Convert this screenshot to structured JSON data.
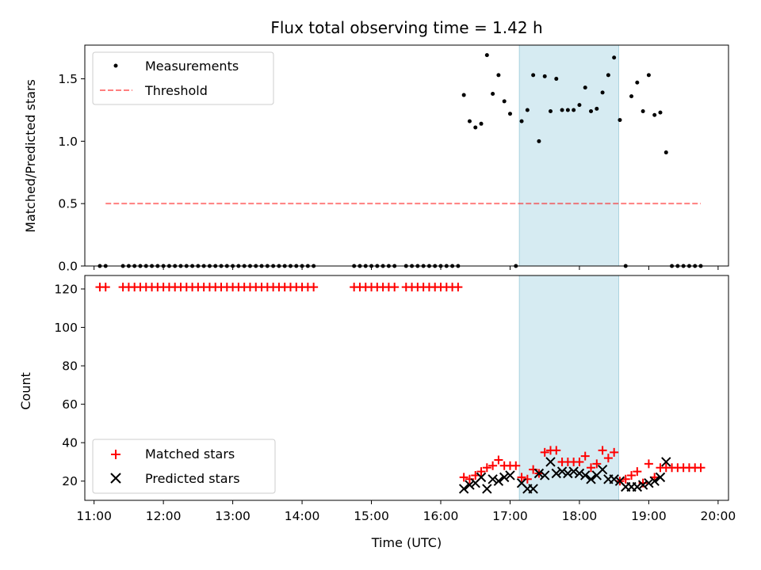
{
  "chart_data": [
    {
      "type": "scatter",
      "title": "Flux total observing time = 1.42 h",
      "ylabel": "Matched/Predicted stars",
      "xlabel": "",
      "xlim": [
        "10:52",
        "20:09"
      ],
      "ylim": [
        0,
        1.77
      ],
      "yticks": [
        0.0,
        0.5,
        1.0,
        1.5
      ],
      "yticklabels": [
        "0.0",
        "0.5",
        "1.0",
        "1.5"
      ],
      "grid": false,
      "legend": "top-left",
      "highlight_span": {
        "x0": "17:08",
        "x1": "18:34",
        "color": "#add8e6"
      },
      "series": [
        {
          "name": "Measurements",
          "kind": "points",
          "color": "#000000",
          "x": [
            "11:05",
            "11:10",
            "11:25",
            "11:30",
            "11:35",
            "11:40",
            "11:45",
            "11:50",
            "11:55",
            "12:00",
            "12:05",
            "12:10",
            "12:15",
            "12:20",
            "12:25",
            "12:30",
            "12:35",
            "12:40",
            "12:45",
            "12:50",
            "12:55",
            "13:00",
            "13:05",
            "13:10",
            "13:15",
            "13:20",
            "13:25",
            "13:30",
            "13:35",
            "13:40",
            "13:45",
            "13:50",
            "13:55",
            "14:00",
            "14:05",
            "14:10",
            "14:45",
            "14:50",
            "14:55",
            "15:00",
            "15:05",
            "15:10",
            "15:15",
            "15:20",
            "15:30",
            "15:35",
            "15:40",
            "15:45",
            "15:50",
            "15:55",
            "16:00",
            "16:05",
            "16:10",
            "16:15",
            "16:20",
            "16:25",
            "16:30",
            "16:35",
            "16:40",
            "16:45",
            "16:50",
            "16:55",
            "17:00",
            "17:05",
            "17:10",
            "17:15",
            "17:20",
            "17:25",
            "17:30",
            "17:35",
            "17:40",
            "17:45",
            "17:50",
            "17:55",
            "18:00",
            "18:05",
            "18:10",
            "18:15",
            "18:20",
            "18:25",
            "18:30",
            "18:35",
            "18:40",
            "18:45",
            "18:50",
            "18:55",
            "19:00",
            "19:05",
            "19:10",
            "19:15",
            "19:20",
            "19:25",
            "19:30",
            "19:35",
            "19:40",
            "19:45"
          ],
          "y": [
            0,
            0,
            0,
            0,
            0,
            0,
            0,
            0,
            0,
            0,
            0,
            0,
            0,
            0,
            0,
            0,
            0,
            0,
            0,
            0,
            0,
            0,
            0,
            0,
            0,
            0,
            0,
            0,
            0,
            0,
            0,
            0,
            0,
            0,
            0,
            0,
            0,
            0,
            0,
            0,
            0,
            0,
            0,
            0,
            0,
            0,
            0,
            0,
            0,
            0,
            0,
            0,
            0,
            0,
            1.37,
            1.16,
            1.11,
            1.14,
            1.69,
            1.38,
            1.53,
            1.32,
            1.22,
            0,
            1.16,
            1.25,
            1.53,
            1.0,
            1.52,
            1.24,
            1.5,
            1.25,
            1.25,
            1.25,
            1.29,
            1.43,
            1.24,
            1.26,
            1.39,
            1.53,
            1.67,
            1.17,
            0,
            1.36,
            1.47,
            1.24,
            1.53,
            1.21,
            1.23,
            0.91,
            0,
            0,
            0,
            0,
            0,
            0
          ]
        },
        {
          "name": "Threshold",
          "kind": "dashed-line",
          "color": "#ff0000",
          "x": [
            "11:10",
            "19:45"
          ],
          "y": [
            0.5,
            0.5
          ]
        }
      ]
    },
    {
      "type": "scatter",
      "title": "",
      "ylabel": "Count",
      "xlabel": "Time (UTC)",
      "xlim": [
        "10:52",
        "20:09"
      ],
      "ylim": [
        10,
        127
      ],
      "yticks": [
        20,
        40,
        60,
        80,
        100,
        120
      ],
      "yticklabels": [
        "20",
        "40",
        "60",
        "80",
        "100",
        "120"
      ],
      "xticks": [
        "11:00",
        "12:00",
        "13:00",
        "14:00",
        "15:00",
        "16:00",
        "17:00",
        "18:00",
        "19:00",
        "20:00"
      ],
      "xticklabels": [
        "11:00",
        "12:00",
        "13:00",
        "14:00",
        "15:00",
        "16:00",
        "17:00",
        "18:00",
        "19:00",
        "20:00"
      ],
      "grid": false,
      "legend": "bottom-left",
      "highlight_span": {
        "x0": "17:08",
        "x1": "18:34",
        "color": "#add8e6"
      },
      "series": [
        {
          "name": "Matched stars",
          "kind": "plus-markers",
          "color": "#ff0000",
          "x": [
            "11:05",
            "11:10",
            "11:25",
            "11:30",
            "11:35",
            "11:40",
            "11:45",
            "11:50",
            "11:55",
            "12:00",
            "12:05",
            "12:10",
            "12:15",
            "12:20",
            "12:25",
            "12:30",
            "12:35",
            "12:40",
            "12:45",
            "12:50",
            "12:55",
            "13:00",
            "13:05",
            "13:10",
            "13:15",
            "13:20",
            "13:25",
            "13:30",
            "13:35",
            "13:40",
            "13:45",
            "13:50",
            "13:55",
            "14:00",
            "14:05",
            "14:10",
            "14:45",
            "14:50",
            "14:55",
            "15:00",
            "15:05",
            "15:10",
            "15:15",
            "15:20",
            "15:30",
            "15:35",
            "15:40",
            "15:45",
            "15:50",
            "15:55",
            "16:00",
            "16:05",
            "16:10",
            "16:15",
            "16:20",
            "16:25",
            "16:30",
            "16:35",
            "16:40",
            "16:45",
            "16:50",
            "16:55",
            "17:00",
            "17:05",
            "17:10",
            "17:15",
            "17:20",
            "17:25",
            "17:30",
            "17:35",
            "17:40",
            "17:45",
            "17:50",
            "17:55",
            "18:00",
            "18:05",
            "18:10",
            "18:15",
            "18:20",
            "18:25",
            "18:30",
            "18:35",
            "18:40",
            "18:45",
            "18:50",
            "18:55",
            "19:00",
            "19:05",
            "19:10",
            "19:15",
            "19:20",
            "19:25",
            "19:30",
            "19:35",
            "19:40",
            "19:45"
          ],
          "y": [
            121,
            121,
            121,
            121,
            121,
            121,
            121,
            121,
            121,
            121,
            121,
            121,
            121,
            121,
            121,
            121,
            121,
            121,
            121,
            121,
            121,
            121,
            121,
            121,
            121,
            121,
            121,
            121,
            121,
            121,
            121,
            121,
            121,
            121,
            121,
            121,
            121,
            121,
            121,
            121,
            121,
            121,
            121,
            121,
            121,
            121,
            121,
            121,
            121,
            121,
            121,
            121,
            121,
            121,
            22,
            21,
            23,
            25,
            27,
            28,
            31,
            28,
            28,
            28,
            22,
            21,
            26,
            24,
            35,
            36,
            36,
            30,
            30,
            30,
            30,
            33,
            27,
            29,
            36,
            32,
            35,
            20,
            21,
            23,
            25,
            19,
            29,
            22,
            27,
            27,
            27,
            27,
            27,
            27,
            27,
            27
          ]
        },
        {
          "name": "Predicted stars",
          "kind": "x-markers",
          "color": "#000000",
          "x": [
            "16:20",
            "16:25",
            "16:30",
            "16:35",
            "16:40",
            "16:45",
            "16:50",
            "16:55",
            "17:00",
            "17:10",
            "17:15",
            "17:20",
            "17:25",
            "17:30",
            "17:35",
            "17:40",
            "17:45",
            "17:50",
            "17:55",
            "18:00",
            "18:05",
            "18:10",
            "18:15",
            "18:20",
            "18:25",
            "18:30",
            "18:35",
            "18:40",
            "18:45",
            "18:50",
            "18:55",
            "19:00",
            "19:05",
            "19:10",
            "19:15"
          ],
          "y": [
            16,
            18,
            19,
            22,
            16,
            21,
            20,
            22,
            23,
            19,
            16,
            16,
            24,
            23,
            30,
            24,
            25,
            24,
            25,
            24,
            23,
            21,
            23,
            26,
            21,
            21,
            20,
            17,
            17,
            17,
            18,
            19,
            20,
            22,
            30
          ]
        }
      ]
    }
  ]
}
